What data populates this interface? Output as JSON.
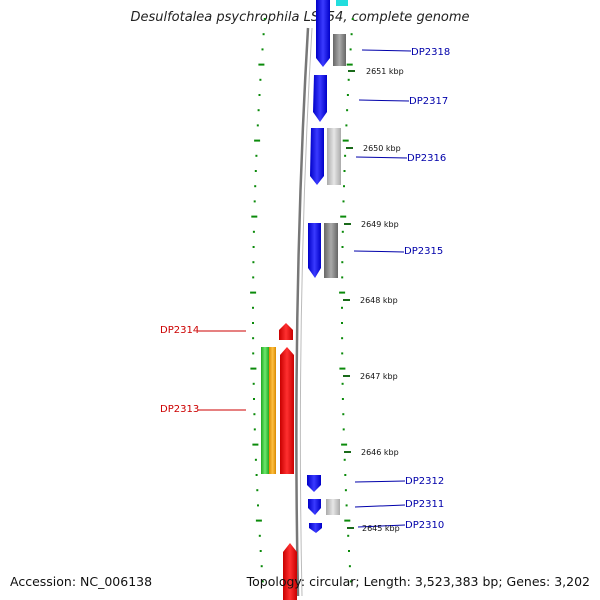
{
  "title": "Desulfotalea psychrophila LSv54, complete genome",
  "footer": {
    "accession": "Accession: NC_006138",
    "topology": "Topology: circular; Length: 3,523,383 bp; Genes: 3,202"
  },
  "colors": {
    "forward_gene": "#1010f0",
    "reverse_gene": "#ee1111",
    "grey_feature": "#999999",
    "green_feature": "#3cc83c",
    "orange_feature": "#f0a000",
    "dots": "#0a8a0a",
    "forward_label": "#0000aa",
    "reverse_label": "#cc0000"
  },
  "scale": {
    "ticks": [
      "2651 kbp",
      "2650 kbp",
      "2649 kbp",
      "2648 kbp",
      "2647 kbp",
      "2646 kbp",
      "2645 kbp"
    ]
  },
  "forward_genes": [
    {
      "label": "DP2318"
    },
    {
      "label": "DP2317"
    },
    {
      "label": "DP2316"
    },
    {
      "label": "DP2315"
    },
    {
      "label": "DP2312"
    },
    {
      "label": "DP2311"
    },
    {
      "label": "DP2310"
    }
  ],
  "reverse_genes": [
    {
      "label": "DP2314"
    },
    {
      "label": "DP2313"
    }
  ]
}
